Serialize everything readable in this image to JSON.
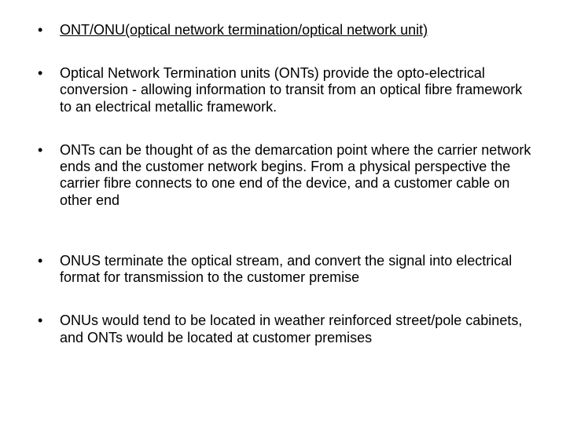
{
  "text_color": "#000000",
  "background_color": "#ffffff",
  "font_family": "Arial",
  "font_size_pt": 14,
  "bullets": [
    {
      "text": "ONT/ONU(optical network termination/optical network unit)",
      "underline": true
    },
    {
      "text": "Optical Network Termination units (ONTs) provide the opto-electrical conversion - allowing information to transit from an optical fibre framework to an electrical metallic framework.",
      "underline": false
    },
    {
      "text": "ONTs can be thought of as the demarcation point where the carrier network ends and the customer network begins. From a physical perspective the carrier fibre connects to one end of the device, and a customer cable on  other end",
      "underline": false
    },
    {
      "text": "ONUS terminate the optical stream, and convert the signal into electrical format for transmission to the customer premise",
      "underline": false
    },
    {
      "text": "ONUs would tend to be located in weather reinforced street/pole cabinets, and ONTs would be located at customer premises",
      "underline": false
    }
  ]
}
